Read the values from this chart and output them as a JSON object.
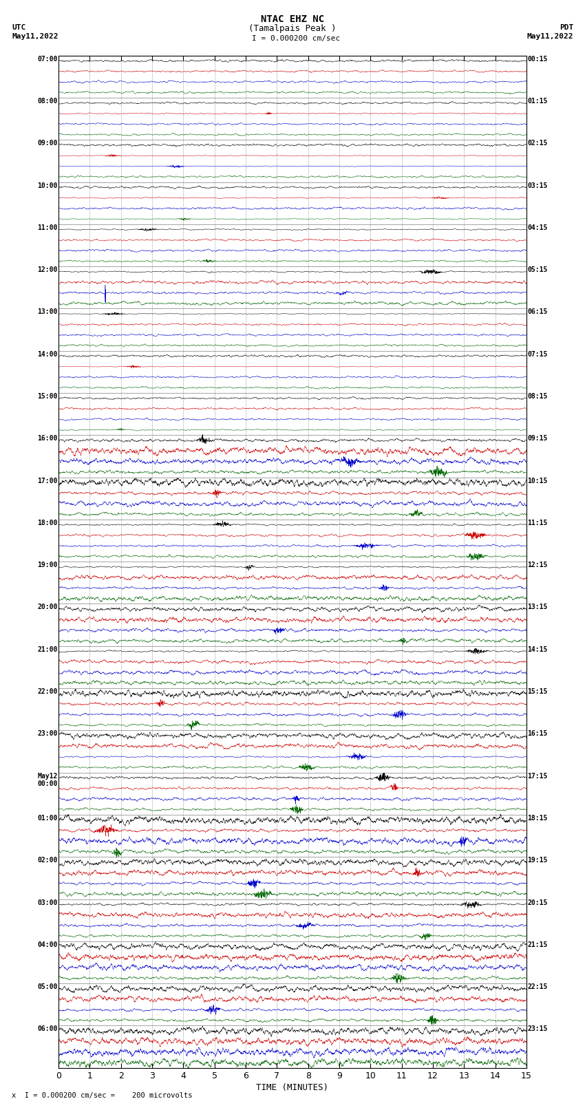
{
  "title_line1": "NTAC EHZ NC",
  "title_line2": "(Tamalpais Peak )",
  "scale_label": "I = 0.000200 cm/sec",
  "left_label": "UTC",
  "left_date": "May11,2022",
  "right_label": "PDT",
  "right_date": "May11,2022",
  "bottom_label": "TIME (MINUTES)",
  "footer_text": "x  I = 0.000200 cm/sec =    200 microvolts",
  "xlim": [
    0,
    15
  ],
  "xticks": [
    0,
    1,
    2,
    3,
    4,
    5,
    6,
    7,
    8,
    9,
    10,
    11,
    12,
    13,
    14,
    15
  ],
  "background_color": "#ffffff",
  "trace_colors": [
    "#000000",
    "#cc0000",
    "#0000cc",
    "#006600"
  ],
  "fig_width": 8.5,
  "fig_height": 16.13,
  "num_hours": 24,
  "traces_per_hour": 4,
  "utc_times": [
    "07:00",
    "08:00",
    "09:00",
    "10:00",
    "11:00",
    "12:00",
    "13:00",
    "14:00",
    "15:00",
    "16:00",
    "17:00",
    "18:00",
    "19:00",
    "20:00",
    "21:00",
    "22:00",
    "23:00",
    "May12\n00:00",
    "01:00",
    "02:00",
    "03:00",
    "04:00",
    "05:00",
    "06:00"
  ],
  "pdt_times": [
    "00:15",
    "01:15",
    "02:15",
    "03:15",
    "04:15",
    "05:15",
    "06:15",
    "07:15",
    "08:15",
    "09:15",
    "10:15",
    "11:15",
    "12:15",
    "13:15",
    "14:15",
    "15:15",
    "16:15",
    "17:15",
    "18:15",
    "19:15",
    "20:15",
    "21:15",
    "22:15",
    "23:15"
  ]
}
